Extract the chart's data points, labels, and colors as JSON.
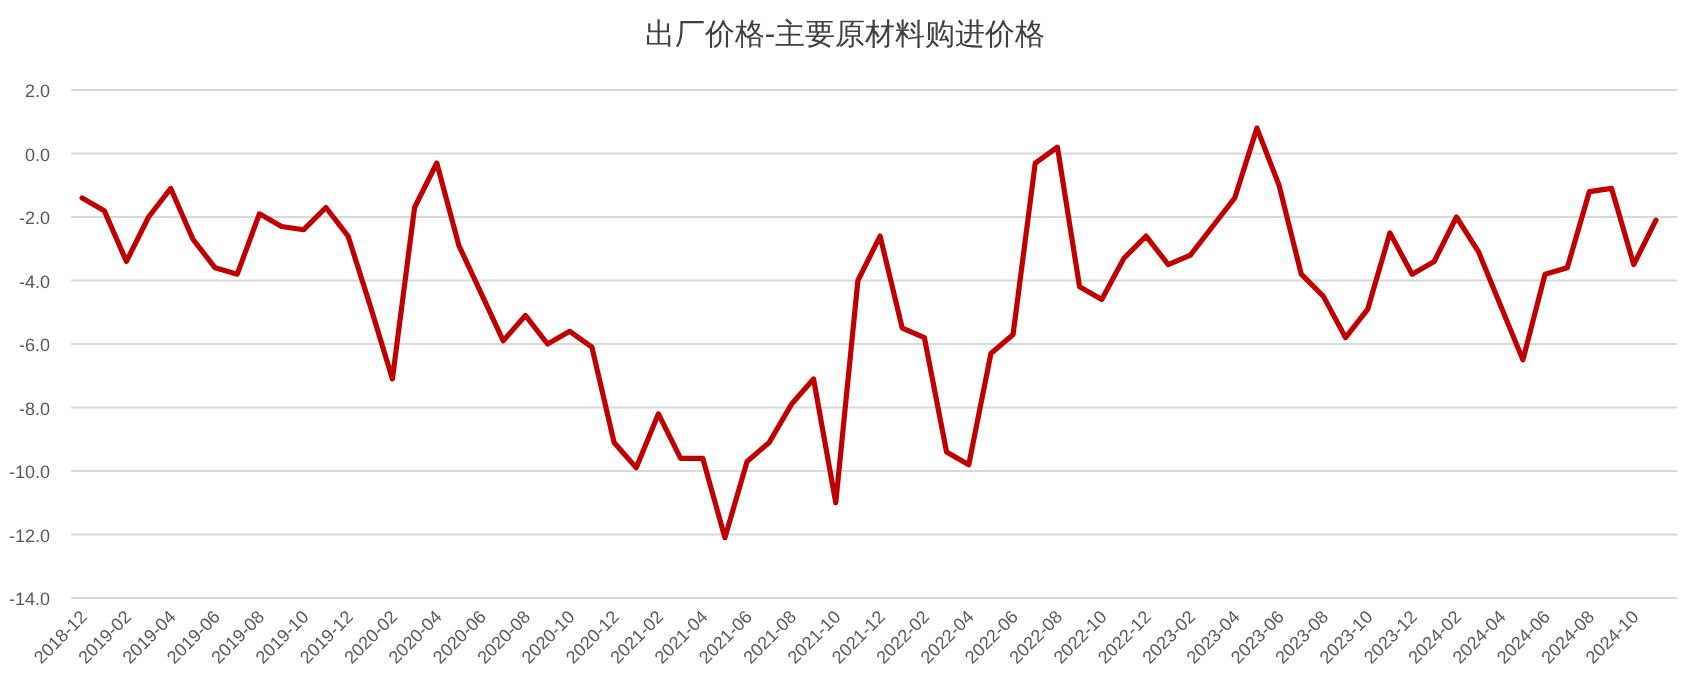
{
  "chart_data": {
    "type": "line",
    "title": "出厂价格-主要原材料购进价格",
    "categories": [
      "2018-12",
      null,
      "2019-02",
      null,
      "2019-04",
      null,
      "2019-06",
      null,
      "2019-08",
      null,
      "2019-10",
      null,
      "2019-12",
      null,
      "2020-02",
      null,
      "2020-04",
      null,
      "2020-06",
      null,
      "2020-08",
      null,
      "2020-10",
      null,
      "2020-12",
      null,
      "2021-02",
      null,
      "2021-04",
      null,
      "2021-06",
      null,
      "2021-08",
      null,
      "2021-10",
      null,
      "2021-12",
      null,
      "2022-02",
      null,
      "2022-04",
      null,
      "2022-06",
      null,
      "2022-08",
      null,
      "2022-10",
      null,
      "2022-12",
      null,
      "2023-02",
      null,
      "2023-04",
      null,
      "2023-06",
      null,
      "2023-08",
      null,
      "2023-10",
      null,
      "2023-12",
      null,
      "2024-02",
      null,
      "2024-04",
      null,
      "2024-06",
      null,
      "2024-08",
      null,
      "2024-10",
      null
    ],
    "series": [
      {
        "color": "#c00000",
        "values": [
          -1.4,
          -1.8,
          -3.4,
          -2.0,
          -1.1,
          -2.7,
          -3.6,
          -3.8,
          -1.9,
          -2.3,
          -2.4,
          -1.7,
          -2.6,
          -4.8,
          -7.1,
          -1.7,
          -0.3,
          -2.9,
          -4.4,
          -5.9,
          -5.1,
          -6.0,
          -5.6,
          -6.1,
          -9.1,
          -9.9,
          -8.2,
          -9.6,
          -9.6,
          -12.1,
          -9.7,
          -9.1,
          -7.9,
          -7.1,
          -11.0,
          -4.0,
          -2.6,
          -5.5,
          -5.8,
          -9.4,
          -9.8,
          -6.3,
          -5.7,
          -0.3,
          0.2,
          -4.2,
          -4.6,
          -3.3,
          -2.6,
          -3.5,
          -3.2,
          -2.3,
          -1.4,
          0.8,
          -1.0,
          -3.8,
          -4.5,
          -5.8,
          -4.9,
          -2.5,
          -3.8,
          -3.4,
          -2.0,
          -3.1,
          -4.8,
          -6.5,
          -3.8,
          -3.6,
          -1.2,
          -1.1,
          -3.5,
          -2.1
        ]
      }
    ],
    "ylim": [
      -14,
      2
    ],
    "yticks": [
      {
        "value": 2,
        "label": "2.0"
      },
      {
        "value": 0,
        "label": "0.0"
      },
      {
        "value": -2,
        "label": "-2.0"
      },
      {
        "value": -4,
        "label": "-4.0"
      },
      {
        "value": -6,
        "label": "-6.0"
      },
      {
        "value": -8,
        "label": "-8.0"
      },
      {
        "value": -10,
        "label": "-10.0"
      },
      {
        "value": -12,
        "label": "-12.0"
      },
      {
        "value": -14,
        "label": "-14.0"
      }
    ],
    "grid": "y",
    "marker": "none",
    "line_style": "solid"
  }
}
